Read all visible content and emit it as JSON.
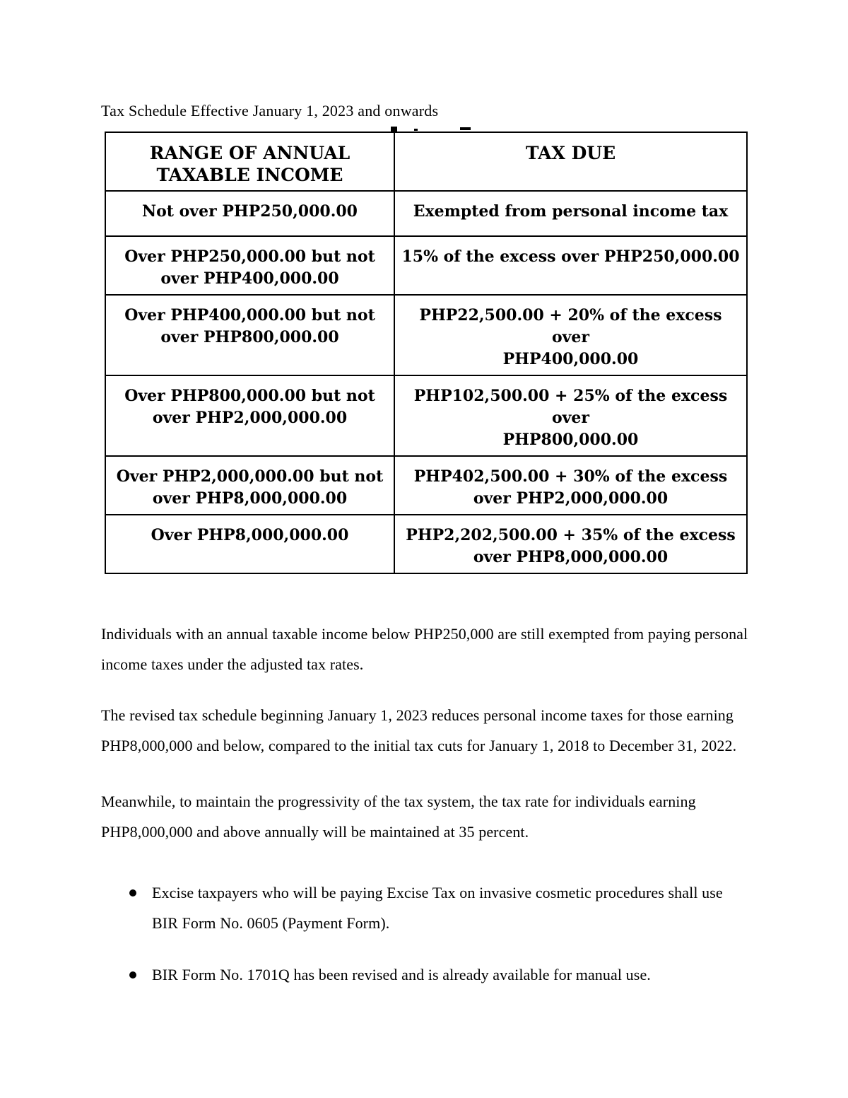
{
  "title": "Tax Schedule Effective January 1, 2023 and onwards",
  "colors": {
    "text": "#000000",
    "table_border": "#000000",
    "background": "#ffffff"
  },
  "table": {
    "headers": {
      "range": "RANGE OF ANNUAL\nTAXABLE INCOME",
      "tax_due": "TAX DUE"
    },
    "rows": [
      {
        "range": "Not over PHP250,000.00",
        "tax_due": "Exempted from personal income tax"
      },
      {
        "range": "Over PHP250,000.00 but not\nover PHP400,000.00",
        "tax_due": "15% of the excess over PHP250,000.00"
      },
      {
        "range": "Over PHP400,000.00 but not\nover PHP800,000.00",
        "tax_due": "PHP22,500.00 + 20% of the excess over\nPHP400,000.00"
      },
      {
        "range": "Over PHP800,000.00 but not\nover PHP2,000,000.00",
        "tax_due": "PHP102,500.00 + 25% of the excess over\nPHP800,000.00"
      },
      {
        "range": "Over PHP2,000,000.00 but not\nover PHP8,000,000.00",
        "tax_due": "PHP402,500.00 + 30% of the excess\nover PHP2,000,000.00"
      },
      {
        "range": "Over PHP8,000,000.00",
        "tax_due": "PHP2,202,500.00 + 35% of the excess\nover PHP8,000,000.00"
      }
    ]
  },
  "paragraphs": [
    "Individuals with an annual taxable income below PHP250,000 are still exempted from paying personal income taxes under the adjusted tax rates.",
    "The revised tax schedule beginning January 1, 2023 reduces personal income taxes for those earning PHP8,000,000 and below,  compared to the initial tax cuts for January 1, 2018 to December 31, 2022.",
    "Meanwhile, to maintain the progressivity of the tax system, the tax rate for individuals earning PHP8,000,000 and above annually will be maintained at 35 percent."
  ],
  "bullets": [
    "Excise taxpayers who will be paying Excise Tax on invasive cosmetic procedures shall use BIR Form No. 0605 (Payment Form).",
    "BIR Form No. 1701Q has been revised and is already available for manual use."
  ]
}
